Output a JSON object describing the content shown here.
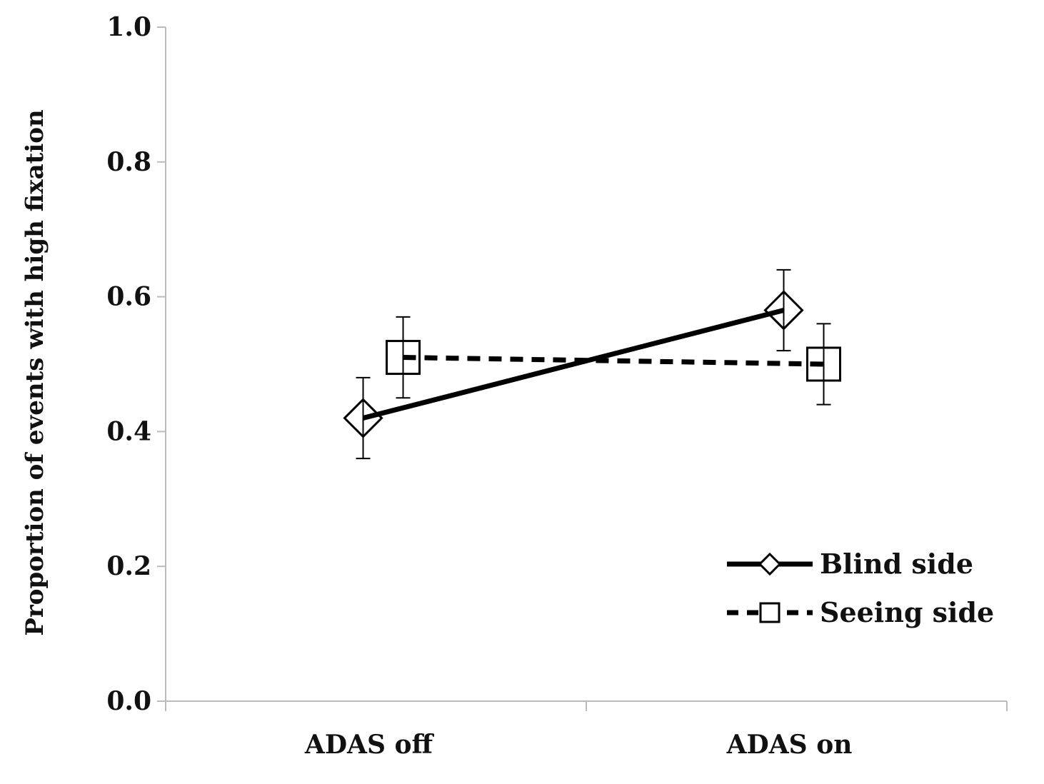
{
  "chart_data": {
    "type": "line",
    "title": "",
    "xlabel": "",
    "ylabel": "Proportion of events with high fixation",
    "categories": [
      "ADAS off",
      "ADAS on"
    ],
    "ylim": [
      0.0,
      1.0
    ],
    "yticks": [
      "0.0",
      "0.2",
      "0.4",
      "0.6",
      "0.8",
      "1.0"
    ],
    "ytick_values": [
      0.0,
      0.2,
      0.4,
      0.6,
      0.8,
      1.0
    ],
    "grid": false,
    "legend_position": "bottom-right",
    "series": [
      {
        "name": "Blind side",
        "style": "solid",
        "marker": "diamond",
        "values": [
          0.42,
          0.58
        ],
        "error_low": [
          0.36,
          0.52
        ],
        "error_high": [
          0.48,
          0.64
        ]
      },
      {
        "name": "Seeing side",
        "style": "dashed",
        "marker": "square",
        "values": [
          0.51,
          0.5
        ],
        "error_low": [
          0.45,
          0.44
        ],
        "error_high": [
          0.57,
          0.56
        ]
      }
    ],
    "colors": {
      "line": "#000000",
      "axis": "#bbbbbb",
      "marker_fill": "#ffffff"
    }
  }
}
